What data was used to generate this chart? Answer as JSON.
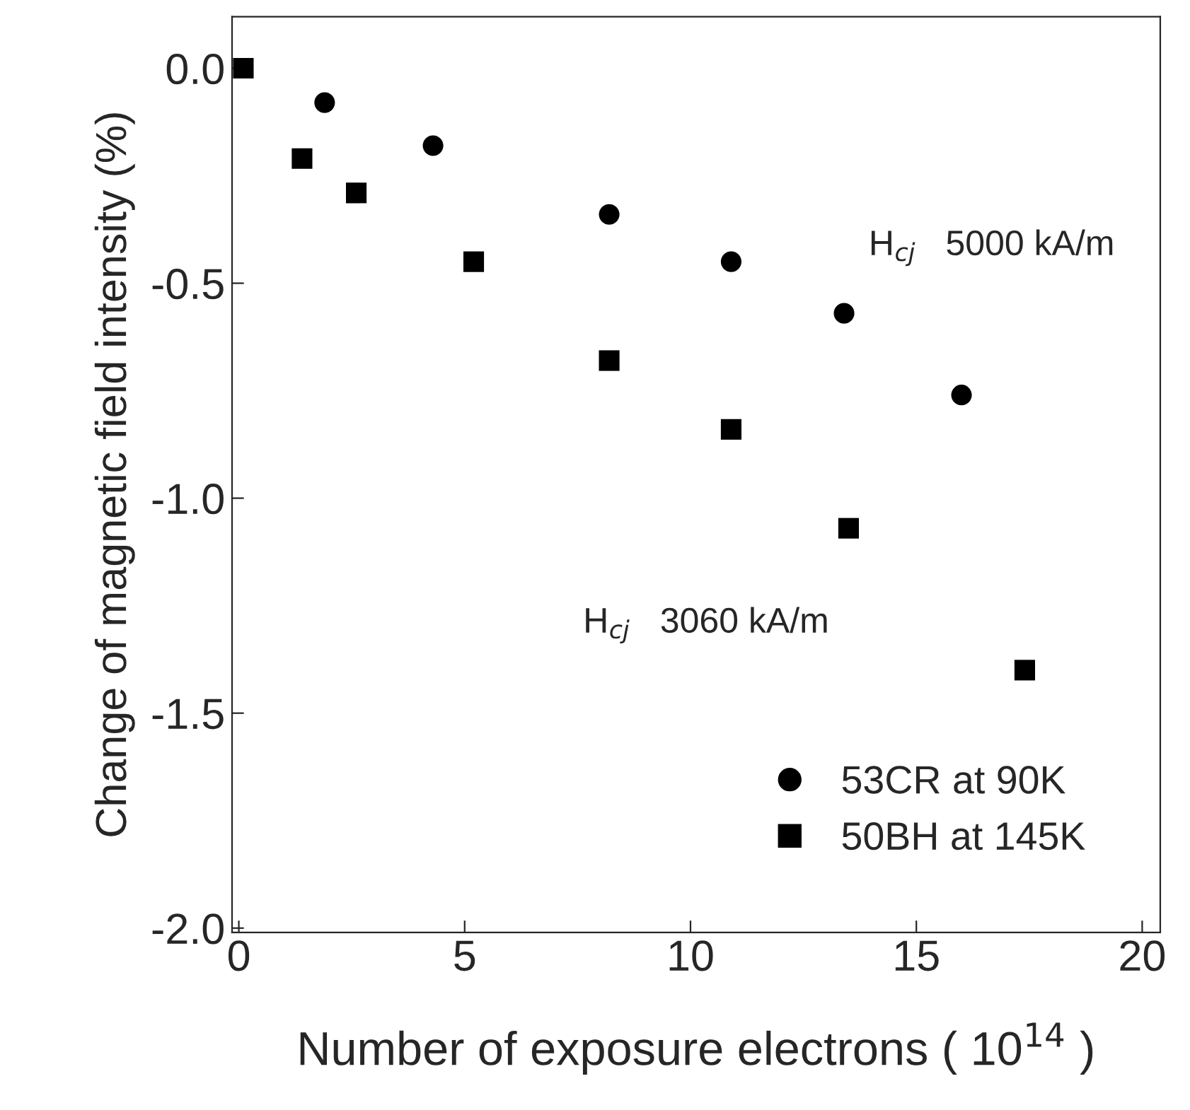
{
  "chart_data": {
    "type": "scatter",
    "xlabel": "Number of exposure electrons ( 10$^{14}$ )",
    "ylabel": "Change of magnetic field intensity (%)",
    "series": [
      {
        "name": "53CR at 90K",
        "color": "#000000",
        "marker": "circle",
        "x": [
          1.9,
          4.3,
          8.2,
          10.9,
          13.4,
          16.0
        ],
        "values": [
          -0.08,
          -0.18,
          -0.34,
          -0.45,
          -0.57,
          -0.76
        ]
      },
      {
        "name": "50BH at 145K",
        "color": "#000000",
        "marker": "square",
        "x": [
          0.1,
          1.4,
          2.6,
          5.2,
          8.2,
          10.9,
          13.5,
          17.4
        ],
        "values": [
          0.0,
          -0.21,
          -0.29,
          -0.45,
          -0.68,
          -0.84,
          -1.07,
          -1.4
        ]
      }
    ],
    "annotations": [
      "H$_{cj}$   5000 kA/m",
      "H$_{cj}$   3060 kA/m"
    ],
    "xlim": [
      -0.15,
      20.4
    ],
    "ylim": [
      -2.01,
      0.12
    ],
    "xticks": [
      0,
      5,
      10,
      15,
      20
    ],
    "yticks": [
      {
        "value": 0,
        "label": "0.0"
      },
      {
        "value": -0.5,
        "label": "-0.5"
      },
      {
        "value": -1.0,
        "label": "-1.0"
      },
      {
        "value": -1.5,
        "label": "-1.5"
      },
      {
        "value": -2.0,
        "label": "-2.0"
      }
    ],
    "grid": false,
    "legend": "bottom right"
  }
}
